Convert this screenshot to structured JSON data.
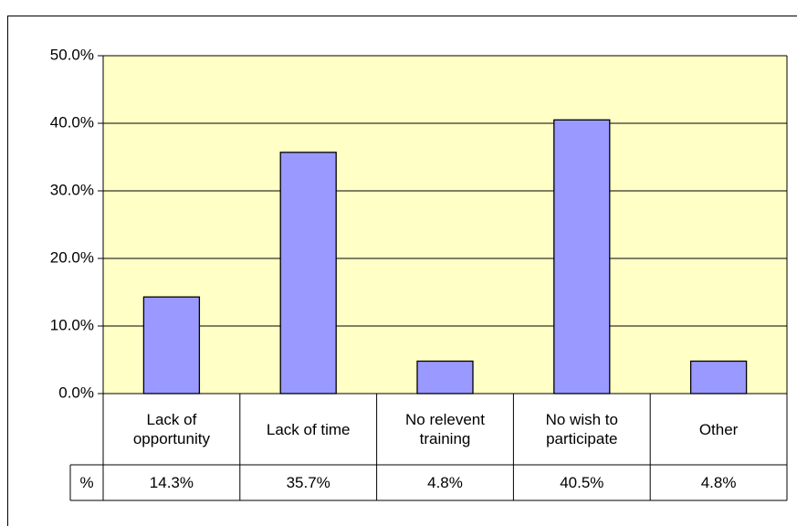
{
  "chart_data": {
    "type": "bar",
    "categories": [
      "Lack of opportunity",
      "Lack of time",
      "No relevent training",
      "No wish to participate",
      "Other"
    ],
    "series": [
      {
        "name": "%",
        "color": "#9999ff",
        "values": [
          14.3,
          35.7,
          4.8,
          40.5,
          4.8
        ],
        "value_labels": [
          "14.3%",
          "35.7%",
          "4.8%",
          "40.5%",
          "4.8%"
        ]
      }
    ],
    "ylim": [
      0,
      50
    ],
    "yticks": [
      {
        "value": 0,
        "label": "0.0%"
      },
      {
        "value": 10,
        "label": "10.0%"
      },
      {
        "value": 20,
        "label": "20.0%"
      },
      {
        "value": 30,
        "label": "30.0%"
      },
      {
        "value": 40,
        "label": "40.0%"
      },
      {
        "value": 50,
        "label": "50.0%"
      }
    ],
    "grid": true,
    "plot_background": "#ffffc6"
  }
}
